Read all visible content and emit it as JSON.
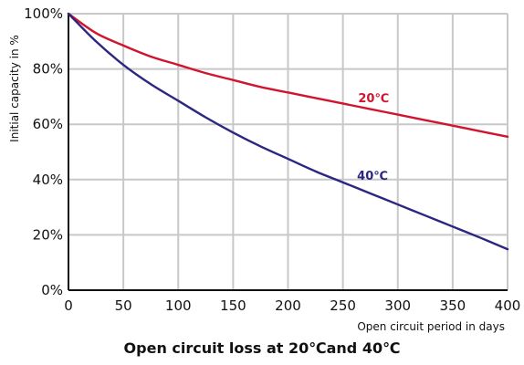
{
  "chart_data": {
    "type": "line",
    "title": "Open circuit loss at 20℃and 40℃",
    "xlabel": "Open circuit period in days",
    "ylabel": "Initial capacity in %",
    "x": [
      0,
      25,
      50,
      75,
      100,
      125,
      150,
      175,
      200,
      225,
      250,
      275,
      300,
      325,
      350,
      375,
      400
    ],
    "xlim": [
      0,
      400
    ],
    "ylim": [
      0,
      100
    ],
    "xticks": [
      "0",
      "50",
      "100",
      "150",
      "200",
      "250",
      "300",
      "350",
      "400"
    ],
    "yticks": [
      "0%",
      "20%",
      "40%",
      "60%",
      "80%",
      "100%"
    ],
    "grid": true,
    "legend": "inline labels",
    "series": [
      {
        "name": "20℃",
        "color": "#d0152e",
        "values": [
          100,
          93,
          88.5,
          84.5,
          81.5,
          78.5,
          76,
          73.5,
          71.5,
          69.5,
          67.5,
          65.5,
          63.5,
          61.5,
          59.5,
          57.5,
          55.5
        ],
        "label_at": [
          278,
          68
        ]
      },
      {
        "name": "40℃",
        "color": "#2b2680",
        "values": [
          100,
          90,
          81.5,
          74.5,
          68.5,
          62.5,
          57,
          52,
          47.5,
          43,
          39,
          35,
          31,
          27,
          23,
          19,
          14.8
        ],
        "label_at": [
          277,
          40
        ]
      }
    ]
  }
}
